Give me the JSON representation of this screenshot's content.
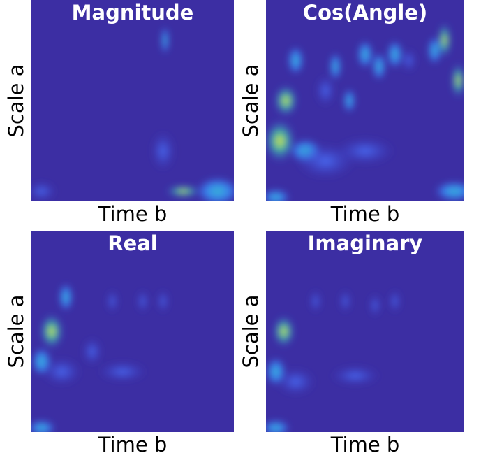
{
  "chart_data": [
    {
      "type": "heatmap",
      "title": "Magnitude",
      "x_label": "Time b",
      "y_label": "Scale a"
    },
    {
      "type": "heatmap",
      "title": "Cos(Angle)",
      "x_label": "Time b",
      "y_label": "Scale a"
    },
    {
      "type": "heatmap",
      "title": "Real",
      "x_label": "Time b",
      "y_label": "Scale a"
    },
    {
      "type": "heatmap",
      "title": "Imaginary",
      "x_label": "Time b",
      "y_label": "Scale a"
    }
  ]
}
